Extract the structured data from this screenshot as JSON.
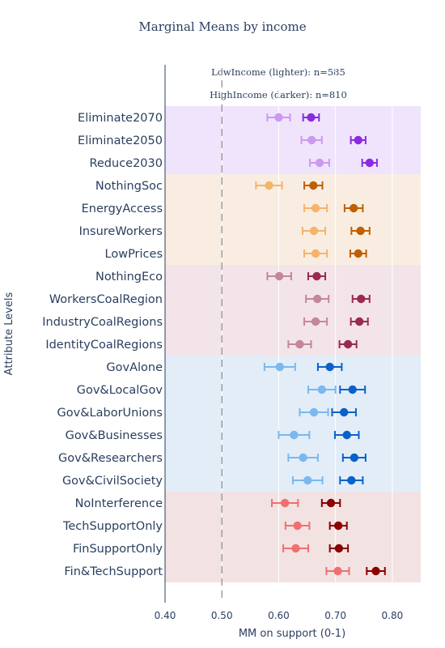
{
  "chart_data": {
    "type": "scatter",
    "title": "Marginal Means by income",
    "xlabel": "MM on support (0-1)",
    "ylabel": "Attribute Levels",
    "xlim": [
      0.4,
      0.85
    ],
    "xticks": [
      "0.40",
      "0.50",
      "0.60",
      "0.70",
      "0.80"
    ],
    "reference_line": 0.5,
    "legend": {
      "low": "LowIncome (lighter): n=585",
      "high": "HighIncome (darker): n=810"
    },
    "categories": [
      "Eliminate2070",
      "Eliminate2050",
      "Reduce2030",
      "NothingSoc",
      "EnergyAccess",
      "InsureWorkers",
      "LowPrices",
      "NothingEco",
      "WorkersCoalRegion",
      "IndustryCoalRegions",
      "IdentityCoalRegions",
      "GovAlone",
      "Gov&LocalGov",
      "Gov&LaborUnions",
      "Gov&Businesses",
      "Gov&Researchers",
      "Gov&CivilSociety",
      "NoInterference",
      "TechSupportOnly",
      "FinSupportOnly",
      "Fin&TechSupport"
    ],
    "groups": [
      {
        "items": [
          0,
          1,
          2
        ],
        "band_color": "#f0e4fc",
        "low_color": "#cc99f0",
        "high_color": "#8a2be2"
      },
      {
        "items": [
          3,
          4,
          5,
          6
        ],
        "band_color": "#f9ede2",
        "low_color": "#f5b36b",
        "high_color": "#c06000"
      },
      {
        "items": [
          7,
          8,
          9,
          10
        ],
        "band_color": "#f3e4e9",
        "low_color": "#c4869a",
        "high_color": "#9b2a50"
      },
      {
        "items": [
          11,
          12,
          13,
          14,
          15,
          16
        ],
        "band_color": "#e2edf8",
        "low_color": "#7ab8ef",
        "high_color": "#0a62c9"
      },
      {
        "items": [
          17,
          18,
          19,
          20
        ],
        "band_color": "#f3e2e2",
        "low_color": "#f07070",
        "high_color": "#8b0000"
      }
    ],
    "series": [
      {
        "name": "LowIncome (lighter): n=585",
        "values": [
          0.6,
          0.658,
          0.672,
          0.583,
          0.665,
          0.662,
          0.665,
          0.601,
          0.668,
          0.665,
          0.637,
          0.602,
          0.676,
          0.662,
          0.627,
          0.643,
          0.651,
          0.611,
          0.633,
          0.63,
          0.704
        ],
        "ci_low": [
          0.58,
          0.64,
          0.655,
          0.56,
          0.645,
          0.642,
          0.645,
          0.58,
          0.648,
          0.645,
          0.617,
          0.575,
          0.652,
          0.637,
          0.6,
          0.617,
          0.625,
          0.588,
          0.612,
          0.608,
          0.684
        ],
        "ci_high": [
          0.62,
          0.676,
          0.689,
          0.606,
          0.685,
          0.682,
          0.685,
          0.622,
          0.688,
          0.685,
          0.657,
          0.629,
          0.7,
          0.687,
          0.654,
          0.669,
          0.677,
          0.634,
          0.654,
          0.652,
          0.724
        ]
      },
      {
        "name": "HighIncome (darker): n=810",
        "values": [
          0.657,
          0.74,
          0.76,
          0.661,
          0.732,
          0.744,
          0.74,
          0.667,
          0.745,
          0.742,
          0.722,
          0.69,
          0.73,
          0.715,
          0.72,
          0.733,
          0.728,
          0.692,
          0.705,
          0.706,
          0.771
        ],
        "ci_low": [
          0.643,
          0.727,
          0.747,
          0.645,
          0.716,
          0.728,
          0.726,
          0.652,
          0.73,
          0.727,
          0.707,
          0.669,
          0.708,
          0.694,
          0.699,
          0.713,
          0.708,
          0.676,
          0.69,
          0.69,
          0.755
        ],
        "ci_high": [
          0.671,
          0.753,
          0.773,
          0.677,
          0.748,
          0.76,
          0.754,
          0.682,
          0.76,
          0.757,
          0.737,
          0.711,
          0.752,
          0.736,
          0.741,
          0.753,
          0.748,
          0.708,
          0.72,
          0.722,
          0.787
        ]
      }
    ]
  }
}
